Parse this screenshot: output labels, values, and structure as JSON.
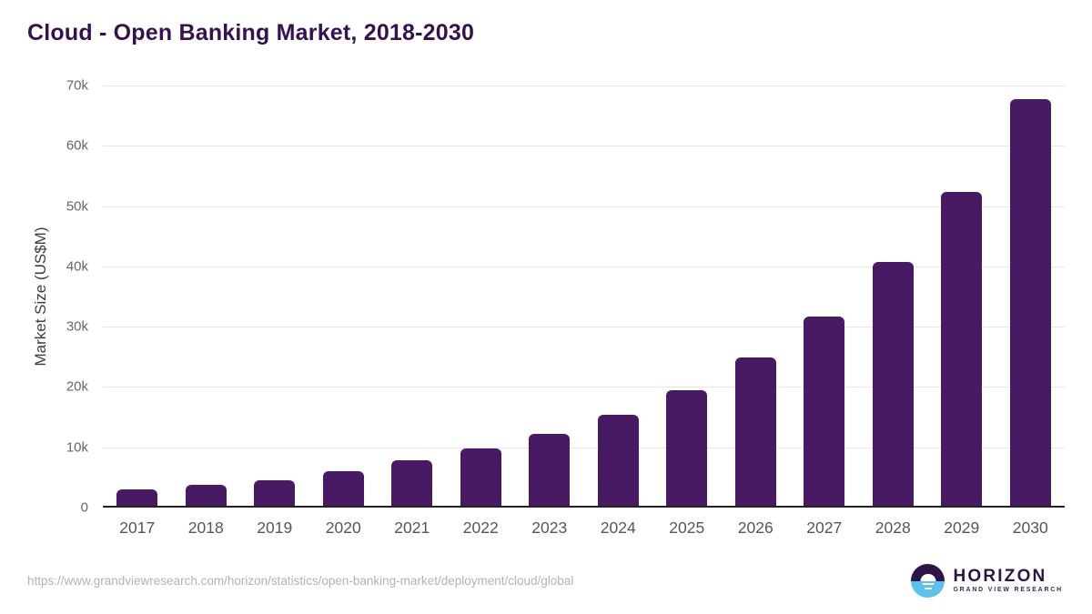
{
  "chart_data": {
    "type": "bar",
    "title": "Cloud - Open Banking Market, 2018-2030",
    "categories": [
      "2017",
      "2018",
      "2019",
      "2020",
      "2021",
      "2022",
      "2023",
      "2024",
      "2025",
      "2026",
      "2027",
      "2028",
      "2029",
      "2030"
    ],
    "values": [
      2700,
      3400,
      4300,
      5700,
      7500,
      9500,
      11900,
      15100,
      19200,
      24600,
      31400,
      40400,
      52100,
      67400
    ],
    "xlabel": "",
    "ylabel": "Market Size (US$M)",
    "ylim": [
      0,
      70000
    ],
    "yticks": [
      {
        "value": 0,
        "label": "0"
      },
      {
        "value": 10000,
        "label": "10k"
      },
      {
        "value": 20000,
        "label": "20k"
      },
      {
        "value": 30000,
        "label": "30k"
      },
      {
        "value": 40000,
        "label": "40k"
      },
      {
        "value": 50000,
        "label": "50k"
      },
      {
        "value": 60000,
        "label": "60k"
      },
      {
        "value": 70000,
        "label": "70k"
      }
    ],
    "grid": "horizontal",
    "legend_position": "none",
    "bar_color": "#471a63",
    "title_color": "#35124f",
    "gridline_color": "#e7e7e7"
  },
  "footer": {
    "source_url": "https://www.grandviewresearch.com/horizon/statistics/open-banking-market/deployment/cloud/global",
    "logo": {
      "name": "HORIZON",
      "tagline": "GRAND VIEW RESEARCH",
      "icon": "horizon-sun-circle-icon",
      "purple": "#2e1547",
      "blue": "#5bc2ee"
    }
  }
}
